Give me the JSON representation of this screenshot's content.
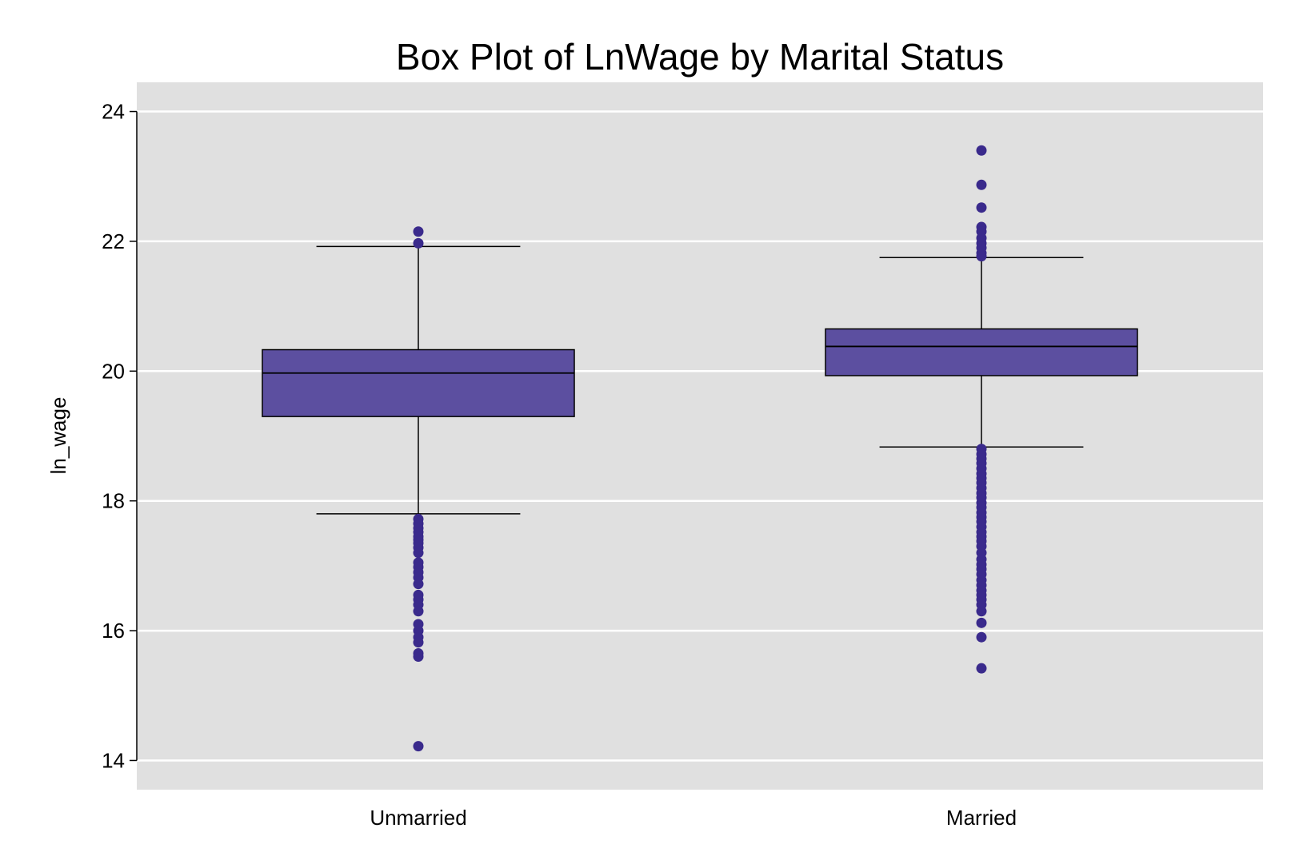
{
  "chart_data": {
    "type": "box",
    "title": "Box Plot of LnWage by Marital Status",
    "xlabel": "",
    "ylabel": "ln_wage",
    "ylim": [
      13.55,
      24.45
    ],
    "yticks": [
      14,
      16,
      18,
      20,
      22,
      24
    ],
    "grid": true,
    "colors": {
      "panel": "#e0e0e0",
      "grid": "#ffffff",
      "box_fill": "#5c4fa0",
      "outlier": "#3a2a8c",
      "line": "#000000"
    },
    "categories": [
      "Unmarried",
      "Married"
    ],
    "boxes": [
      {
        "category": "Unmarried",
        "whisker_low": 17.8,
        "q1": 19.3,
        "median": 19.97,
        "q3": 20.33,
        "whisker_high": 21.92,
        "outliers": [
          22.15,
          21.97,
          17.72,
          17.65,
          17.58,
          17.52,
          17.45,
          17.4,
          17.35,
          17.28,
          17.2,
          17.05,
          16.98,
          16.9,
          16.82,
          16.72,
          16.55,
          16.48,
          16.4,
          16.3,
          16.1,
          16.0,
          15.9,
          15.82,
          15.65,
          15.6,
          14.22
        ]
      },
      {
        "category": "Married",
        "whisker_low": 18.83,
        "q1": 19.93,
        "median": 20.38,
        "q3": 20.65,
        "whisker_high": 21.75,
        "outliers": [
          23.4,
          22.87,
          22.52,
          22.22,
          22.15,
          22.05,
          21.97,
          21.9,
          21.82,
          21.77,
          18.8,
          18.72,
          18.65,
          18.58,
          18.5,
          18.42,
          18.35,
          18.28,
          18.2,
          18.12,
          18.05,
          17.97,
          17.9,
          17.82,
          17.75,
          17.68,
          17.6,
          17.52,
          17.45,
          17.38,
          17.3,
          17.2,
          17.1,
          17.02,
          16.95,
          16.87,
          16.78,
          16.7,
          16.62,
          16.55,
          16.48,
          16.4,
          16.3,
          16.12,
          15.9,
          15.42
        ]
      }
    ]
  }
}
